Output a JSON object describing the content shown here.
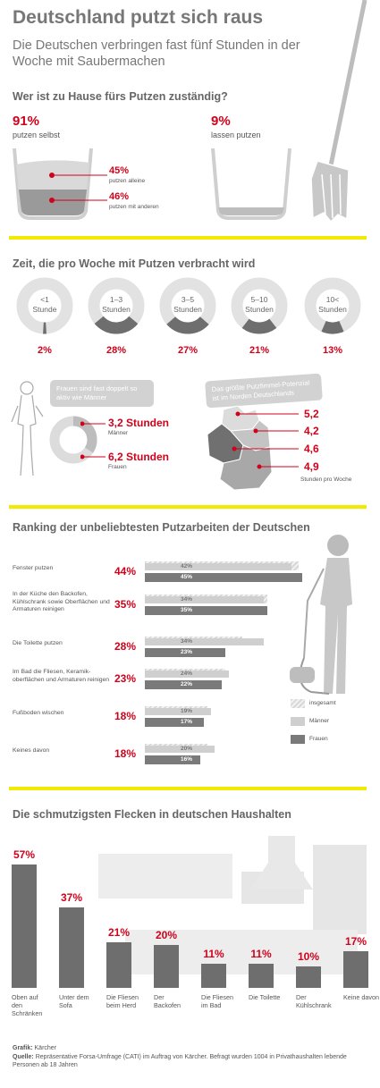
{
  "header": {
    "title": "Deutschland putzt sich raus",
    "subtitle": "Die Deutschen verbringen fast fünf Stunden in der Woche mit Saubermachen"
  },
  "who": {
    "heading": "Wer ist zu Hause fürs Putzen zuständig?",
    "self_pct": "91%",
    "self_label": "putzen selbst",
    "alone_pct": "45%",
    "alone_label": "putzen alleine",
    "others_pct": "46%",
    "others_label": "putzen mit anderen",
    "let_pct": "9%",
    "let_label": "lassen putzen"
  },
  "time": {
    "heading": "Zeit, die pro Woche mit Putzen verbracht wird",
    "donuts": [
      {
        "line1": "<1",
        "line2": "Stunde",
        "pct": "2%",
        "value": 2
      },
      {
        "line1": "1–3",
        "line2": "Stunden",
        "pct": "28%",
        "value": 28
      },
      {
        "line1": "3–5",
        "line2": "Stunden",
        "pct": "27%",
        "value": 27
      },
      {
        "line1": "5–10",
        "line2": "Stunden",
        "pct": "21%",
        "value": 21
      },
      {
        "line1": "10<",
        "line2": "Stunden",
        "pct": "13%",
        "value": 13
      }
    ]
  },
  "gender": {
    "bubble": "Frauen sind fast doppelt so aktiv wie Männer",
    "men_value": "3,2 Stunden",
    "men_label": "Männer",
    "women_value": "6,2 Stunden",
    "women_label": "Frauen"
  },
  "region": {
    "bubble": "Das größte Putzfimmel-Potenzial ist im Norden Deutschlands",
    "values": [
      "5,2",
      "4,2",
      "4,6",
      "4,9"
    ],
    "unit": "Stunden pro Woche"
  },
  "ranking": {
    "heading": "Ranking der unbeliebtesten Putzarbeiten der Deutschen",
    "items": [
      {
        "label": "Fenster putzen",
        "pct": "44%",
        "m": "42%",
        "f": "45%",
        "total": 44,
        "mv": 42,
        "fv": 45
      },
      {
        "label": "In der Küche den Backofen, Kühlschrank sowie Oberflächen und Armaturen reinigen",
        "pct": "35%",
        "m": "34%",
        "f": "35%",
        "total": 35,
        "mv": 34,
        "fv": 35
      },
      {
        "label": "Die Toilette putzen",
        "pct": "28%",
        "m": "34%",
        "f": "23%",
        "total": 28,
        "mv": 34,
        "fv": 23
      },
      {
        "label": "Im Bad die Fliesen, Keramik-oberflächen und Armaturen reinigen",
        "pct": "23%",
        "m": "24%",
        "f": "22%",
        "total": 23,
        "mv": 24,
        "fv": 22
      },
      {
        "label": "Fußboden wischen",
        "pct": "18%",
        "m": "19%",
        "f": "17%",
        "total": 18,
        "mv": 19,
        "fv": 17
      },
      {
        "label": "Keines davon",
        "pct": "18%",
        "m": "20%",
        "f": "16%",
        "total": 18,
        "mv": 20,
        "fv": 16
      }
    ],
    "legend": {
      "total": "insgesamt",
      "men": "Männer",
      "women": "Frauen"
    }
  },
  "spots": {
    "heading": "Die schmutzigsten Flecken in deutschen Haushalten"
  },
  "chart_data": {
    "type": "bar",
    "categories": [
      "Oben auf den Schränken",
      "Unter dem Sofa",
      "Die Fliesen beim Herd",
      "Der Backofen",
      "Die Fliesen im Bad",
      "Die Toilette",
      "Der Kühlschrank",
      "Keine davon"
    ],
    "values": [
      57,
      37,
      21,
      20,
      11,
      11,
      10,
      17
    ],
    "labels": [
      "57%",
      "37%",
      "21%",
      "20%",
      "11%",
      "11%",
      "10%",
      "17%"
    ],
    "title": "Die schmutzigsten Flecken in deutschen Haushalten",
    "ylim": [
      0,
      57
    ]
  },
  "footer": {
    "grafik_key": "Grafik:",
    "grafik_val": "Kärcher",
    "quelle_key": "Quelle:",
    "quelle_val": "Repräsentative Forsa-Umfrage (CATI) im Auftrag von Kärcher. Befragt wurden 1004 in Privathaushalten lebende Personen ab 18 Jahren"
  },
  "colors": {
    "accent": "#d0021b",
    "yellow": "#f2ea00",
    "dark": "#6e6e6e",
    "light": "#cfcfcf"
  }
}
